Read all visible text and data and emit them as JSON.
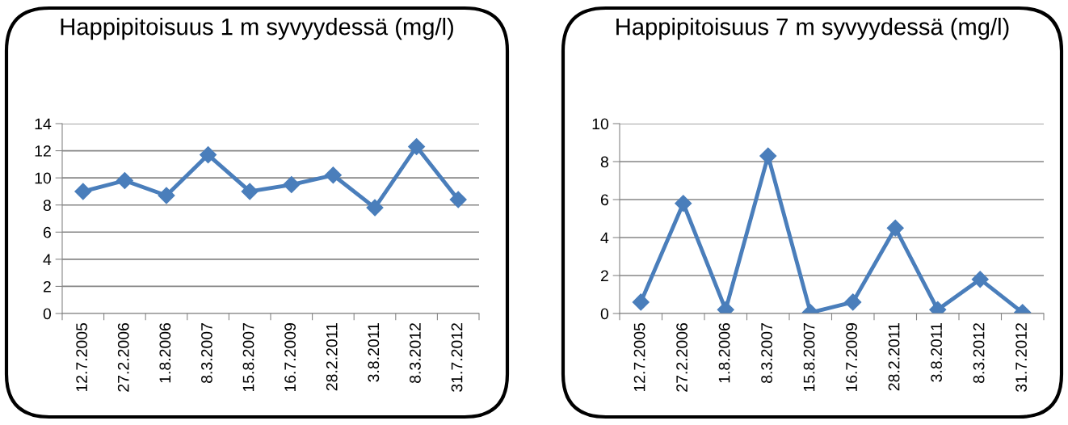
{
  "chart_data": [
    {
      "type": "line",
      "title": "Happipitoisuus 1 m syvyydessä (mg/l)",
      "categories": [
        "12.7.2005",
        "27.2.2006",
        "1.8.2006",
        "8.3.2007",
        "15.8.2007",
        "16.7.2009",
        "28.2.2011",
        "3.8.2011",
        "8.3.2012",
        "31.7.2012"
      ],
      "series": [
        {
          "color": "#4a7ebb",
          "values": [
            9.0,
            9.8,
            8.7,
            11.7,
            9.0,
            9.5,
            10.2,
            7.8,
            12.3,
            8.4
          ]
        }
      ],
      "ylim": [
        0,
        14
      ],
      "yticks": [
        0,
        2,
        4,
        6,
        8,
        10,
        12,
        14
      ],
      "grid": "y",
      "legend": false,
      "marker": "diamond",
      "line_style": "solid"
    },
    {
      "type": "line",
      "title": "Happipitoisuus 7 m syvyydessä (mg/l)",
      "categories": [
        "12.7.2005",
        "27.2.2006",
        "1.8.2006",
        "8.3.2007",
        "15.8.2007",
        "16.7.2009",
        "28.2.2011",
        "3.8.2011",
        "8.3.2012",
        "31.7.2012"
      ],
      "series": [
        {
          "color": "#4a7ebb",
          "values": [
            0.6,
            5.8,
            0.2,
            8.3,
            0.05,
            0.6,
            4.5,
            0.2,
            1.8,
            0.05
          ]
        }
      ],
      "ylim": [
        0,
        10
      ],
      "yticks": [
        0,
        2,
        4,
        6,
        8,
        10
      ],
      "grid": "y",
      "legend": false,
      "marker": "diamond",
      "line_style": "solid"
    }
  ]
}
